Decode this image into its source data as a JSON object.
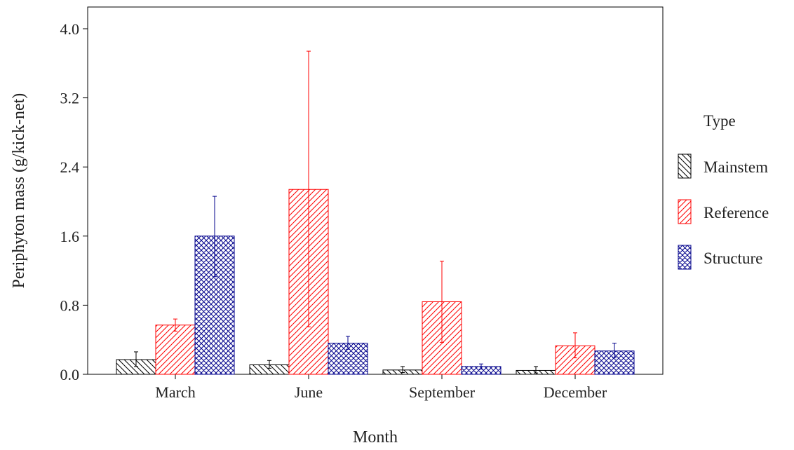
{
  "chart_data": {
    "type": "bar",
    "xlabel": "Month",
    "ylabel": "Periphyton mass (g/kick-net)",
    "ylim": [
      0,
      4.0
    ],
    "yticks": [
      "0.0",
      "0.8",
      "1.6",
      "2.4",
      "3.2",
      "4.0"
    ],
    "ytick_values": [
      0,
      0.8,
      1.6,
      2.4,
      3.2,
      4.0
    ],
    "categories": [
      "March",
      "June",
      "September",
      "December"
    ],
    "legend_title": "Type",
    "legend_position": "right",
    "grid": false,
    "series": [
      {
        "name": "Mainstem",
        "color": "#000000",
        "pattern": "diagonal-back",
        "values": [
          0.17,
          0.11,
          0.05,
          0.045
        ],
        "err_low": [
          0.09,
          0.07,
          0.02,
          0.015
        ],
        "err_high": [
          0.26,
          0.16,
          0.09,
          0.09
        ]
      },
      {
        "name": "Reference",
        "color": "#ff0000",
        "pattern": "diagonal-forward",
        "values": [
          0.57,
          2.14,
          0.84,
          0.33
        ],
        "err_low": [
          0.5,
          0.55,
          0.37,
          0.19
        ],
        "err_high": [
          0.64,
          3.74,
          1.31,
          0.48
        ]
      },
      {
        "name": "Structure",
        "color": "#00008b",
        "pattern": "crosshatch",
        "values": [
          1.6,
          0.36,
          0.09,
          0.27
        ],
        "err_low": [
          1.13,
          0.29,
          0.06,
          0.19
        ],
        "err_high": [
          2.06,
          0.44,
          0.12,
          0.36
        ]
      }
    ]
  }
}
